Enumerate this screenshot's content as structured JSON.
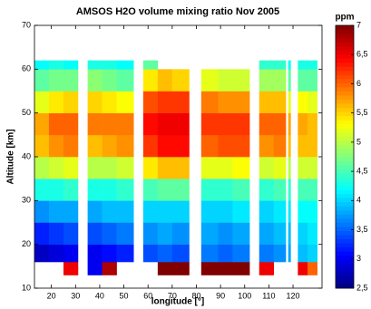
{
  "chart_data": {
    "type": "heatmap",
    "title": "AMSOS H2O volume mixing ratio Nov 2005",
    "x_label": "longitude [°]",
    "y_label": "Altitude [km]",
    "colorbar_label": "ppm",
    "colormap": "jet",
    "clim": [
      2.5,
      7
    ],
    "xlim": [
      13,
      132
    ],
    "ylim": [
      10,
      70
    ],
    "xticks": [
      20,
      30,
      40,
      50,
      60,
      70,
      80,
      90,
      100,
      110,
      120
    ],
    "yticks": [
      10,
      20,
      30,
      40,
      50,
      60,
      70
    ],
    "cticks": [
      {
        "value": 2.5,
        "label": "2,5"
      },
      3,
      {
        "value": 3.5,
        "label": "3,5"
      },
      4,
      {
        "value": 4.5,
        "label": "4,5"
      },
      5,
      {
        "value": 5.5,
        "label": "5,5"
      },
      6,
      {
        "value": 6.5,
        "label": "6,5"
      },
      7
    ],
    "x_edges": [
      13,
      19,
      25,
      31,
      35,
      41,
      47,
      54,
      58,
      64,
      70,
      77,
      82,
      89,
      95,
      102,
      106,
      112,
      117,
      118,
      119,
      122,
      126,
      130
    ],
    "y_edges": [
      13,
      16,
      20,
      25,
      30,
      35,
      40,
      45,
      50,
      55,
      60,
      62
    ],
    "values": [
      [
        null,
        null,
        6.5,
        null,
        3.0,
        6.8,
        null,
        null,
        null,
        7,
        7,
        null,
        7,
        7,
        7,
        null,
        6.5,
        null,
        null,
        null,
        null,
        6.5,
        6.0
      ],
      [
        2.8,
        2.9,
        3.0,
        null,
        3.0,
        3.1,
        3.2,
        null,
        3.4,
        3.5,
        3.4,
        null,
        3.6,
        3.5,
        3.6,
        null,
        3.6,
        3.7,
        null,
        3.8,
        null,
        3.9,
        4.0
      ],
      [
        3.2,
        3.3,
        3.4,
        null,
        3.4,
        3.5,
        3.6,
        null,
        3.7,
        3.8,
        3.7,
        null,
        3.8,
        3.7,
        3.8,
        null,
        3.8,
        3.9,
        null,
        3.9,
        null,
        4.0,
        4.1
      ],
      [
        3.7,
        3.8,
        3.8,
        null,
        3.8,
        3.9,
        3.9,
        null,
        4.0,
        4.0,
        4.0,
        null,
        4.0,
        4.0,
        4.1,
        null,
        4.0,
        4.1,
        null,
        4.1,
        null,
        4.2,
        4.2
      ],
      [
        4.3,
        4.3,
        4.4,
        null,
        4.3,
        4.3,
        4.4,
        null,
        4.5,
        4.6,
        4.6,
        null,
        4.4,
        4.4,
        4.5,
        null,
        4.4,
        4.5,
        null,
        4.4,
        null,
        4.5,
        4.5
      ],
      [
        5.0,
        5.1,
        5.2,
        null,
        5.0,
        5.0,
        5.1,
        null,
        5.4,
        5.6,
        5.6,
        null,
        5.2,
        5.2,
        5.3,
        null,
        5.1,
        5.2,
        null,
        5.0,
        null,
        5.1,
        5.1
      ],
      [
        5.6,
        5.8,
        5.9,
        null,
        5.6,
        5.7,
        5.8,
        null,
        6.2,
        6.4,
        6.4,
        null,
        6.0,
        6.1,
        6.1,
        null,
        5.8,
        5.9,
        null,
        5.6,
        null,
        5.6,
        5.6
      ],
      [
        5.7,
        6.0,
        6.0,
        null,
        5.9,
        5.9,
        5.9,
        null,
        6.4,
        6.5,
        6.5,
        null,
        6.2,
        6.2,
        6.2,
        null,
        6.0,
        6.0,
        null,
        5.7,
        null,
        5.7,
        5.6
      ],
      [
        5.2,
        5.4,
        5.5,
        null,
        5.5,
        5.4,
        5.3,
        null,
        6.1,
        6.2,
        6.2,
        null,
        5.9,
        5.8,
        5.8,
        null,
        5.6,
        5.6,
        null,
        5.2,
        null,
        5.3,
        5.2
      ],
      [
        4.6,
        4.7,
        4.7,
        null,
        4.8,
        4.7,
        4.6,
        null,
        5.4,
        5.6,
        5.5,
        null,
        5.2,
        5.1,
        5.1,
        null,
        4.9,
        4.9,
        null,
        4.6,
        null,
        4.6,
        4.6
      ],
      [
        4.2,
        4.3,
        4.2,
        null,
        4.3,
        4.3,
        4.2,
        null,
        4.6,
        null,
        null,
        null,
        null,
        null,
        null,
        null,
        4.4,
        4.4,
        null,
        4.2,
        null,
        4.3,
        4.3
      ]
    ]
  }
}
